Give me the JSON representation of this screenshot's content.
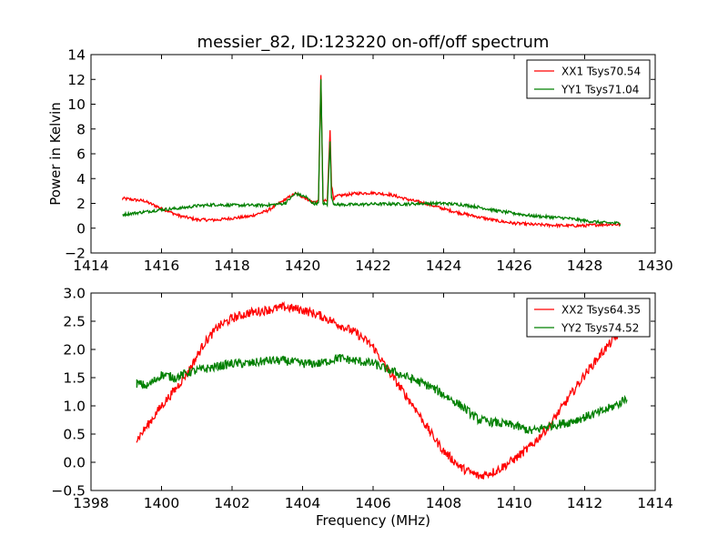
{
  "chart_data": [
    {
      "type": "line",
      "title": "messier_82, ID:123220 on-off/off spectrum",
      "xlabel": "",
      "ylabel": "Power in Kelvin",
      "xlim": [
        1414,
        1430
      ],
      "ylim": [
        -2,
        14
      ],
      "xticks": [
        1414,
        1416,
        1418,
        1420,
        1422,
        1424,
        1426,
        1428,
        1430
      ],
      "yticks": [
        -2,
        0,
        2,
        4,
        6,
        8,
        10,
        12,
        14
      ],
      "legend_position": "upper right",
      "grid": false,
      "series": [
        {
          "name": "XX1 Tsys70.54",
          "color": "#ff0000",
          "x": [
            1414.9,
            1415.5,
            1416.0,
            1416.5,
            1417.0,
            1417.5,
            1418.0,
            1418.5,
            1419.0,
            1419.5,
            1419.8,
            1420.1,
            1420.3,
            1420.45,
            1420.52,
            1420.58,
            1420.7,
            1420.78,
            1420.82,
            1420.88,
            1421.0,
            1421.5,
            1422.0,
            1422.5,
            1423.0,
            1423.5,
            1424.0,
            1424.5,
            1425.0,
            1425.5,
            1426.0,
            1426.5,
            1427.0,
            1427.5,
            1428.0,
            1428.5,
            1429.0
          ],
          "values": [
            2.4,
            2.2,
            1.6,
            1.0,
            0.7,
            0.65,
            0.8,
            0.95,
            1.4,
            2.3,
            2.8,
            2.4,
            2.1,
            2.2,
            12.3,
            2.2,
            2.2,
            7.9,
            3.5,
            2.4,
            2.6,
            2.8,
            2.85,
            2.7,
            2.3,
            2.0,
            1.55,
            1.2,
            0.9,
            0.6,
            0.4,
            0.3,
            0.25,
            0.2,
            0.2,
            0.3,
            0.3
          ]
        },
        {
          "name": "YY1 Tsys71.04",
          "color": "#008000",
          "x": [
            1414.9,
            1415.5,
            1416.0,
            1416.5,
            1417.0,
            1417.5,
            1418.0,
            1418.5,
            1419.0,
            1419.5,
            1419.8,
            1420.1,
            1420.3,
            1420.45,
            1420.52,
            1420.58,
            1420.7,
            1420.78,
            1420.82,
            1420.88,
            1421.0,
            1421.5,
            1422.0,
            1422.5,
            1423.0,
            1423.5,
            1424.0,
            1424.5,
            1425.0,
            1425.5,
            1426.0,
            1426.5,
            1427.0,
            1427.5,
            1428.0,
            1428.5,
            1429.0
          ],
          "values": [
            1.1,
            1.3,
            1.5,
            1.6,
            1.8,
            1.9,
            1.85,
            1.85,
            1.85,
            2.0,
            2.8,
            2.5,
            2.0,
            2.0,
            12.0,
            2.0,
            1.9,
            7.0,
            2.5,
            2.0,
            1.9,
            1.9,
            1.95,
            1.95,
            1.95,
            2.0,
            2.0,
            1.9,
            1.7,
            1.4,
            1.2,
            1.0,
            0.9,
            0.8,
            0.6,
            0.45,
            0.4
          ]
        }
      ]
    },
    {
      "type": "line",
      "title": "",
      "xlabel": "Frequency (MHz)",
      "ylabel": "",
      "xlim": [
        1398,
        1414
      ],
      "ylim": [
        -0.5,
        3.0
      ],
      "xticks": [
        1398,
        1400,
        1402,
        1404,
        1406,
        1408,
        1410,
        1412,
        1414
      ],
      "yticks": [
        -0.5,
        0.0,
        0.5,
        1.0,
        1.5,
        2.0,
        2.5,
        3.0
      ],
      "legend_position": "upper right",
      "grid": false,
      "series": [
        {
          "name": "XX2 Tsys64.35",
          "color": "#ff0000",
          "x": [
            1399.3,
            1399.6,
            1400.0,
            1400.4,
            1400.8,
            1401.2,
            1401.6,
            1402.0,
            1402.5,
            1403.0,
            1403.5,
            1404.0,
            1404.5,
            1405.0,
            1405.5,
            1406.0,
            1406.4,
            1406.8,
            1407.2,
            1407.6,
            1408.0,
            1408.5,
            1409.0,
            1409.5,
            1410.0,
            1410.5,
            1411.0,
            1411.5,
            1412.0,
            1412.5,
            1413.0,
            1413.2
          ],
          "values": [
            0.4,
            0.65,
            1.0,
            1.3,
            1.65,
            2.1,
            2.4,
            2.55,
            2.65,
            2.7,
            2.75,
            2.7,
            2.6,
            2.45,
            2.3,
            2.05,
            1.65,
            1.3,
            0.95,
            0.55,
            0.2,
            -0.1,
            -0.25,
            -0.15,
            0.05,
            0.3,
            0.65,
            1.1,
            1.55,
            1.95,
            2.3,
            2.35
          ]
        },
        {
          "name": "YY2 Tsys74.52",
          "color": "#008000",
          "x": [
            1399.3,
            1399.6,
            1400.0,
            1400.4,
            1400.8,
            1401.2,
            1401.6,
            1402.0,
            1402.5,
            1403.0,
            1403.5,
            1404.0,
            1404.5,
            1405.0,
            1405.5,
            1406.0,
            1406.4,
            1406.8,
            1407.2,
            1407.6,
            1408.0,
            1408.5,
            1409.0,
            1409.5,
            1410.0,
            1410.5,
            1411.0,
            1411.5,
            1412.0,
            1412.5,
            1413.0,
            1413.2
          ],
          "values": [
            1.4,
            1.35,
            1.55,
            1.5,
            1.6,
            1.65,
            1.7,
            1.75,
            1.75,
            1.8,
            1.8,
            1.75,
            1.75,
            1.85,
            1.8,
            1.75,
            1.65,
            1.55,
            1.45,
            1.35,
            1.2,
            1.0,
            0.75,
            0.7,
            0.65,
            0.55,
            0.65,
            0.7,
            0.8,
            0.9,
            1.05,
            1.15
          ]
        }
      ]
    }
  ]
}
